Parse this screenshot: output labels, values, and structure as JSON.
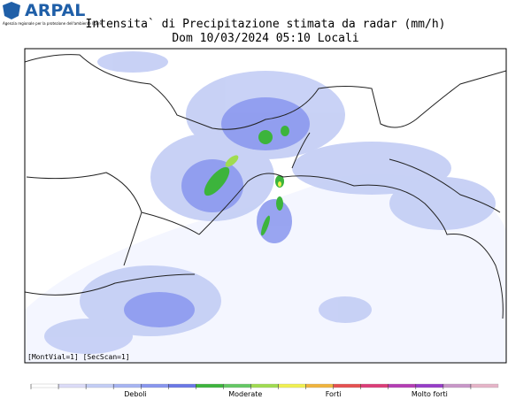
{
  "header": {
    "logo": "ARPAL",
    "logo_subtitle": "Agenzia regionale per la protezione dell'ambiente ligure",
    "title": "Intensita` di Precipitazione stimata da radar (mm/h)",
    "subtitle": "Dom 10/03/2024 05:10 Locali"
  },
  "map": {
    "footer_note": "[MontVial=1] [SecScan=1]"
  },
  "legend": {
    "colors": [
      "#ffffff",
      "#dcdcf8",
      "#c3cdf5",
      "#a6b4f2",
      "#8896ee",
      "#6a78e6",
      "#3cb43c",
      "#64c864",
      "#a0dc50",
      "#f0f050",
      "#f0b43c",
      "#e65050",
      "#dc3c78",
      "#b43cb4",
      "#963cc8",
      "#c896c8",
      "#e6b4c8"
    ],
    "labels": [
      "Deboli",
      "Moderate",
      "Forti",
      "Molto  forti"
    ]
  }
}
